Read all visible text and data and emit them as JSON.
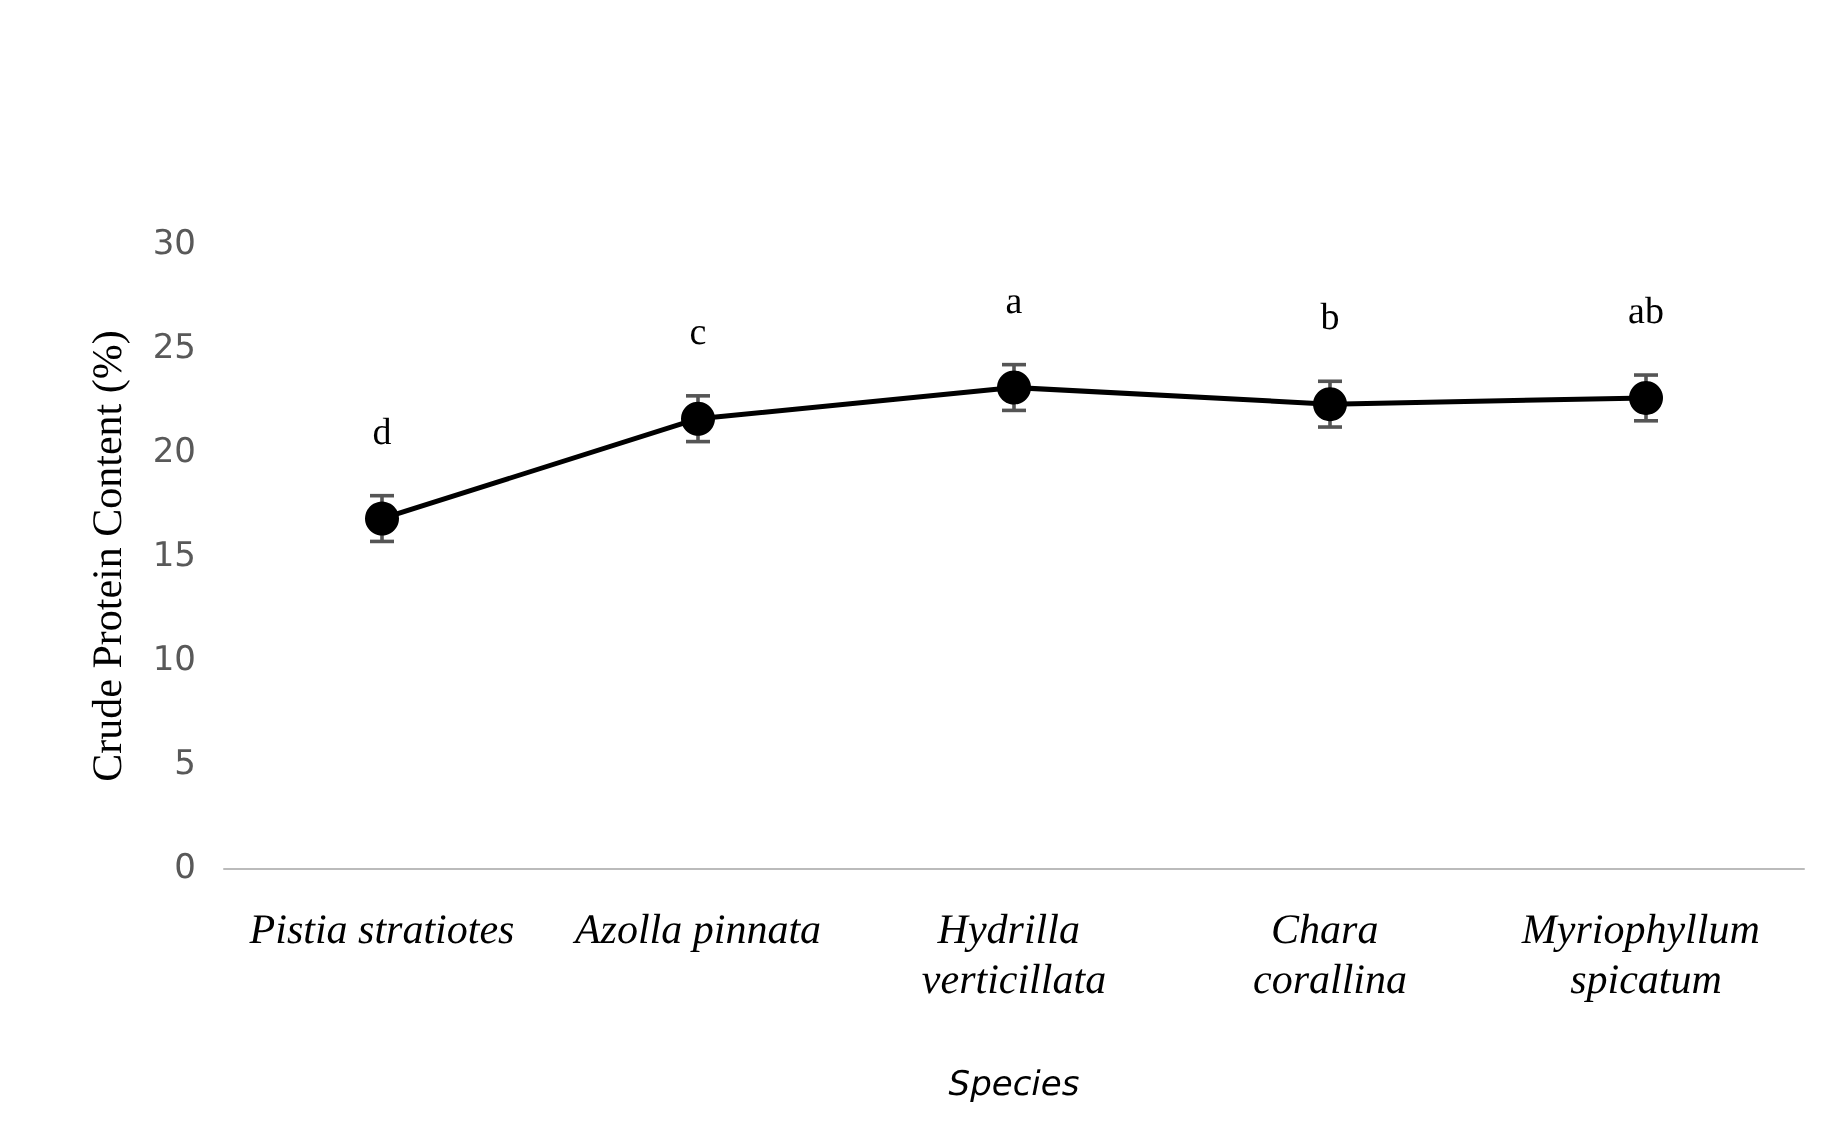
{
  "chart_data": {
    "type": "line",
    "xlabel": "Species",
    "ylabel": "Crude Protein Content (%)",
    "categories": [
      "Pistia stratiotes",
      "Azolla pinnata",
      "Hydrilla verticillata",
      "Chara corallina",
      "Myriophyllum spicatum"
    ],
    "series": [
      {
        "color": "#000000",
        "values": [
          16.8,
          21.6,
          23.1,
          22.3,
          22.6
        ],
        "errors": [
          1.1,
          1.1,
          1.1,
          1.1,
          1.1
        ]
      }
    ],
    "ylim": [
      0,
      30
    ],
    "yticks": [
      0,
      5,
      10,
      15,
      20,
      25,
      30
    ],
    "marker": "circle",
    "line_style": "solid",
    "annotations": [
      "d",
      "c",
      "a",
      "b",
      "ab"
    ]
  }
}
